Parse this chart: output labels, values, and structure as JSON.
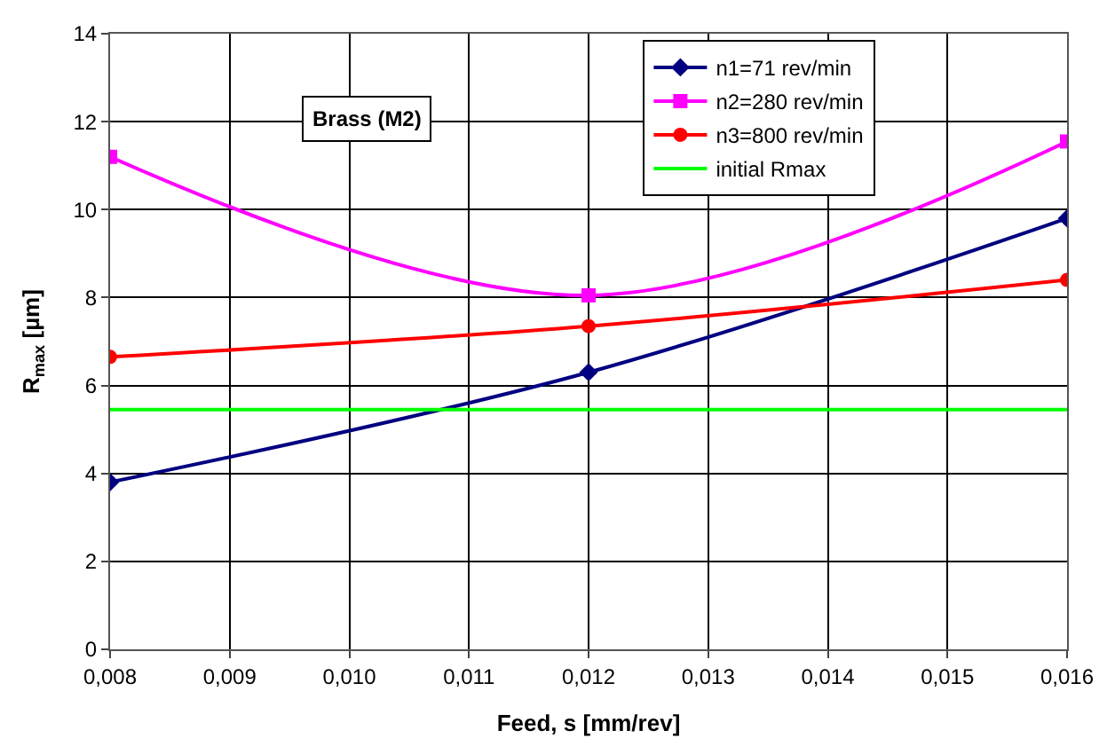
{
  "chart_data": {
    "type": "line",
    "xlabel": "Feed, s [mm/rev]",
    "ylabel": "R$_{max}$ [µm]",
    "annotations": [
      "Brass (M2)"
    ],
    "x": [
      0.008,
      0.012,
      0.016
    ],
    "series": [
      {
        "name": "n1=71 rev/min",
        "color": "#000080",
        "marker": "diamond",
        "values": [
          3.8,
          6.3,
          9.8
        ]
      },
      {
        "name": "n2=280 rev/min",
        "color": "#ff00ff",
        "marker": "square",
        "values": [
          11.2,
          8.05,
          11.55
        ]
      },
      {
        "name": "n3=800 rev/min",
        "color": "#ff0000",
        "marker": "circle",
        "values": [
          6.65,
          7.35,
          8.4
        ]
      },
      {
        "name": "initial Rmax",
        "color": "#00ff00",
        "marker": "none",
        "values": [
          5.45,
          5.45,
          5.45
        ]
      }
    ],
    "xlim": [
      0.008,
      0.016
    ],
    "xticks": [
      {
        "value": 0.008,
        "label": "0,008"
      },
      {
        "value": 0.009,
        "label": "0,009"
      },
      {
        "value": 0.01,
        "label": "0,010"
      },
      {
        "value": 0.011,
        "label": "0,011"
      },
      {
        "value": 0.012,
        "label": "0,012"
      },
      {
        "value": 0.013,
        "label": "0,013"
      },
      {
        "value": 0.014,
        "label": "0,014"
      },
      {
        "value": 0.015,
        "label": "0,015"
      },
      {
        "value": 0.016,
        "label": "0,016"
      }
    ],
    "ylim": [
      0,
      14
    ],
    "yticks": [
      0,
      2,
      4,
      6,
      8,
      10,
      12,
      14
    ],
    "grid": true,
    "legend": "top right"
  }
}
